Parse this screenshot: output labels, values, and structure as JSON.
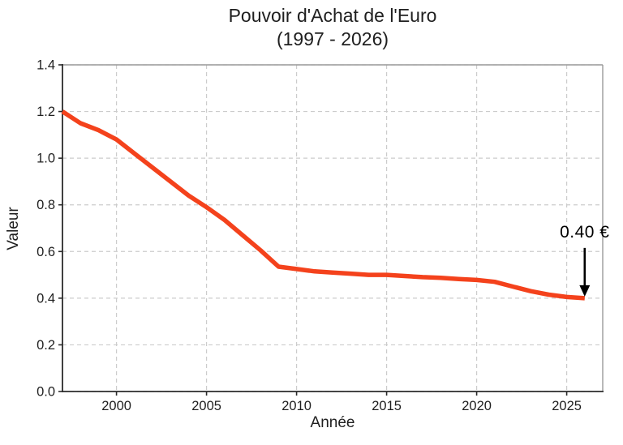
{
  "chart_data": {
    "type": "line",
    "title": "Pouvoir d'Achat de l'Euro",
    "subtitle": "(1997 - 2026)",
    "xlabel": "Année",
    "ylabel": "Valeur",
    "xlim": [
      1997,
      2027
    ],
    "ylim": [
      0.0,
      1.4
    ],
    "x_ticks": [
      2000,
      2005,
      2010,
      2015,
      2020,
      2025
    ],
    "y_ticks": [
      0.0,
      0.2,
      0.4,
      0.6,
      0.8,
      1.0,
      1.2,
      1.4
    ],
    "grid": true,
    "grid_style": "dashed",
    "legend": false,
    "series": [
      {
        "x": [
          1997,
          1998,
          1999,
          2000,
          2001,
          2002,
          2003,
          2004,
          2005,
          2006,
          2007,
          2008,
          2009,
          2010,
          2011,
          2012,
          2013,
          2014,
          2015,
          2016,
          2017,
          2018,
          2019,
          2020,
          2021,
          2022,
          2023,
          2024,
          2025,
          2026
        ],
        "y": [
          1.2,
          1.15,
          1.12,
          1.08,
          1.02,
          0.96,
          0.9,
          0.84,
          0.79,
          0.735,
          0.67,
          0.605,
          0.535,
          0.525,
          0.515,
          0.51,
          0.505,
          0.5,
          0.5,
          0.495,
          0.49,
          0.487,
          0.482,
          0.478,
          0.47,
          0.45,
          0.43,
          0.415,
          0.405,
          0.4
        ]
      }
    ]
  },
  "annotation": {
    "text": "0.40 €",
    "target_year": 2026,
    "target_value": 0.4
  },
  "colors": {
    "line": "#F4421C",
    "grid": "#cccccc",
    "spine_main": "#2b2b2b",
    "spine_box": "#999999",
    "tick": "#2b2b2b",
    "text": "#1f1f1f",
    "annotation_arrow": "#000000",
    "background": "#ffffff"
  }
}
